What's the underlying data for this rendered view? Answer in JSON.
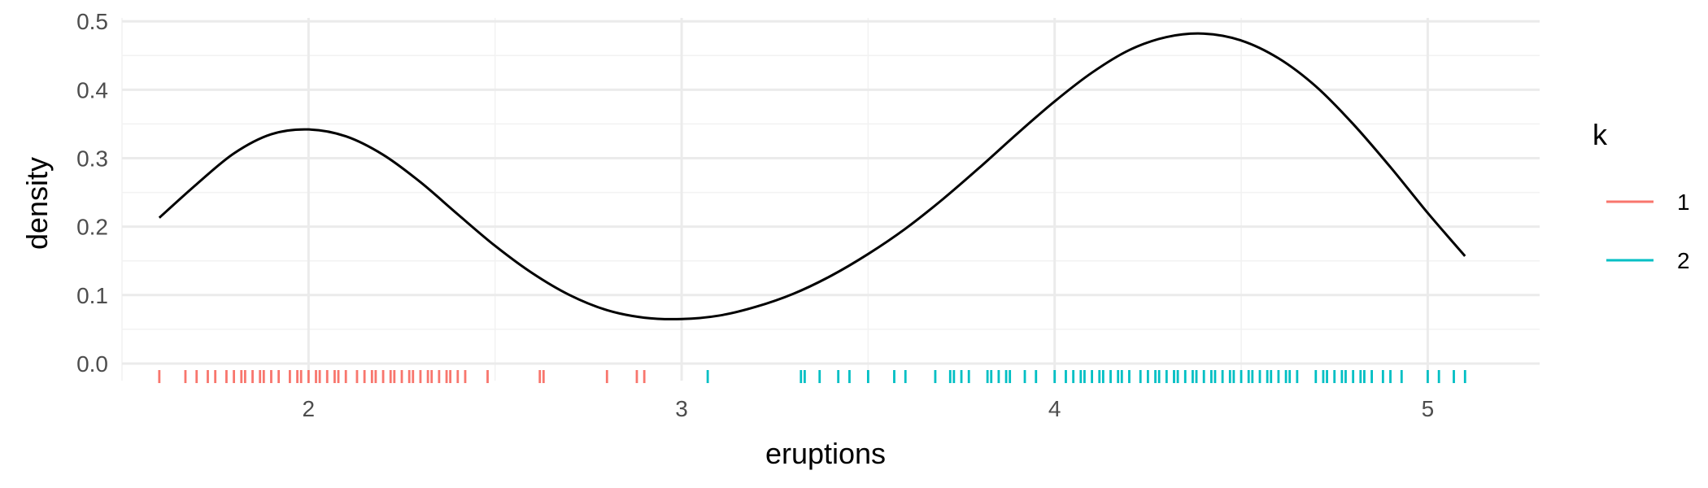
{
  "chart_data": {
    "type": "line",
    "title": "",
    "xlabel": "eruptions",
    "ylabel": "density",
    "xlim": [
      1.5,
      5.3
    ],
    "ylim": [
      -0.025,
      0.505
    ],
    "x_ticks": [
      "2",
      "3",
      "4",
      "5"
    ],
    "x_tick_values": [
      2,
      3,
      4,
      5
    ],
    "y_ticks": [
      "0.0",
      "0.1",
      "0.2",
      "0.3",
      "0.4",
      "0.5"
    ],
    "y_tick_values": [
      0,
      0.1,
      0.2,
      0.3,
      0.4,
      0.5
    ],
    "grid": true,
    "legend": {
      "title": "k",
      "placement": "right",
      "items": [
        {
          "label": "1",
          "color": "#F8766D"
        },
        {
          "label": "2",
          "color": "#00BFC4"
        }
      ]
    },
    "density_line": {
      "color": "#000000",
      "x": [
        1.6,
        1.7,
        1.8,
        1.9,
        2.0,
        2.1,
        2.2,
        2.3,
        2.4,
        2.5,
        2.6,
        2.7,
        2.8,
        2.9,
        3.0,
        3.1,
        3.2,
        3.3,
        3.4,
        3.5,
        3.6,
        3.7,
        3.8,
        3.9,
        4.0,
        4.1,
        4.2,
        4.3,
        4.4,
        4.5,
        4.6,
        4.7,
        4.8,
        4.9,
        5.0,
        5.1
      ],
      "y": [
        0.213,
        0.262,
        0.307,
        0.335,
        0.342,
        0.332,
        0.305,
        0.265,
        0.218,
        0.172,
        0.132,
        0.1,
        0.078,
        0.067,
        0.065,
        0.07,
        0.083,
        0.102,
        0.128,
        0.16,
        0.197,
        0.24,
        0.287,
        0.336,
        0.383,
        0.425,
        0.458,
        0.477,
        0.482,
        0.472,
        0.446,
        0.405,
        0.35,
        0.287,
        0.22,
        0.157
      ]
    },
    "rug": [
      {
        "k": "1",
        "color": "#F8766D",
        "values": [
          1.6,
          1.67,
          1.7,
          1.73,
          1.75,
          1.78,
          1.8,
          1.82,
          1.83,
          1.85,
          1.87,
          1.88,
          1.9,
          1.92,
          1.95,
          1.97,
          1.98,
          2.0,
          2.02,
          2.03,
          2.05,
          2.07,
          2.08,
          2.1,
          2.13,
          2.15,
          2.17,
          2.18,
          2.2,
          2.22,
          2.23,
          2.25,
          2.27,
          2.28,
          2.3,
          2.32,
          2.33,
          2.35,
          2.37,
          2.38,
          2.4,
          2.42,
          2.48,
          2.62,
          2.63,
          2.8,
          2.88,
          2.9
        ]
      },
      {
        "k": "2",
        "color": "#00BFC4",
        "values": [
          3.07,
          3.32,
          3.33,
          3.37,
          3.42,
          3.45,
          3.5,
          3.57,
          3.6,
          3.68,
          3.72,
          3.73,
          3.75,
          3.77,
          3.82,
          3.83,
          3.85,
          3.87,
          3.88,
          3.92,
          3.95,
          4.0,
          4.03,
          4.05,
          4.07,
          4.08,
          4.1,
          4.12,
          4.13,
          4.15,
          4.17,
          4.18,
          4.2,
          4.23,
          4.25,
          4.27,
          4.28,
          4.3,
          4.32,
          4.33,
          4.35,
          4.37,
          4.38,
          4.4,
          4.42,
          4.43,
          4.45,
          4.47,
          4.48,
          4.5,
          4.52,
          4.53,
          4.55,
          4.57,
          4.58,
          4.6,
          4.62,
          4.63,
          4.65,
          4.7,
          4.72,
          4.73,
          4.75,
          4.77,
          4.78,
          4.8,
          4.82,
          4.83,
          4.85,
          4.88,
          4.9,
          4.93,
          5.0,
          5.03,
          5.07,
          5.1
        ]
      }
    ]
  }
}
